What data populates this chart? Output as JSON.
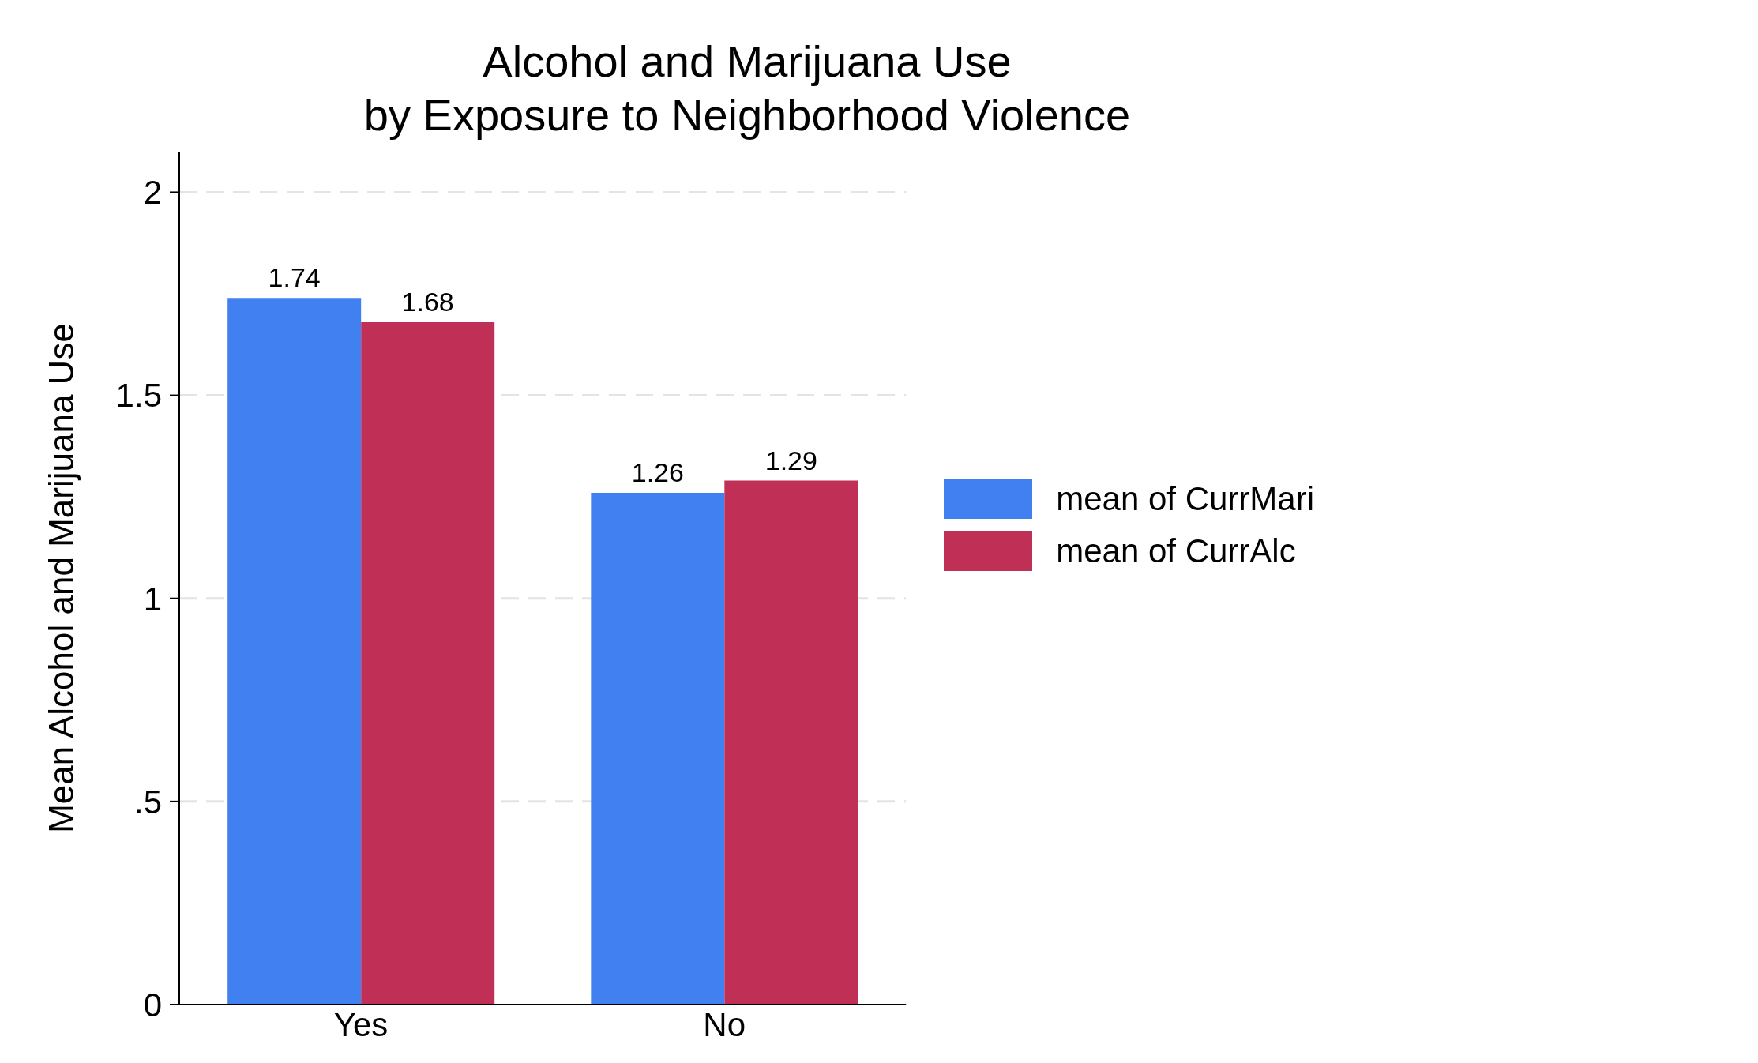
{
  "chart_data": {
    "type": "bar",
    "title": "Alcohol and Marijuana Use\nby Exposure to Neighborhood Violence",
    "ylabel": "Mean Alcohol and Marijuana Use",
    "categories": [
      "Yes",
      "No"
    ],
    "series": [
      {
        "name": "mean of CurrMari",
        "color": "#4080f0",
        "values": [
          1.74,
          1.26
        ]
      },
      {
        "name": "mean of CurrAlc",
        "color": "#c02f56",
        "values": [
          1.68,
          1.29
        ]
      }
    ],
    "ylim": [
      0,
      2.1
    ],
    "yticks": [
      0,
      {
        "value": 0.5,
        "label": ".5"
      },
      1,
      1.5,
      2
    ],
    "grid": "y",
    "legend": "right",
    "data_labels": true
  }
}
